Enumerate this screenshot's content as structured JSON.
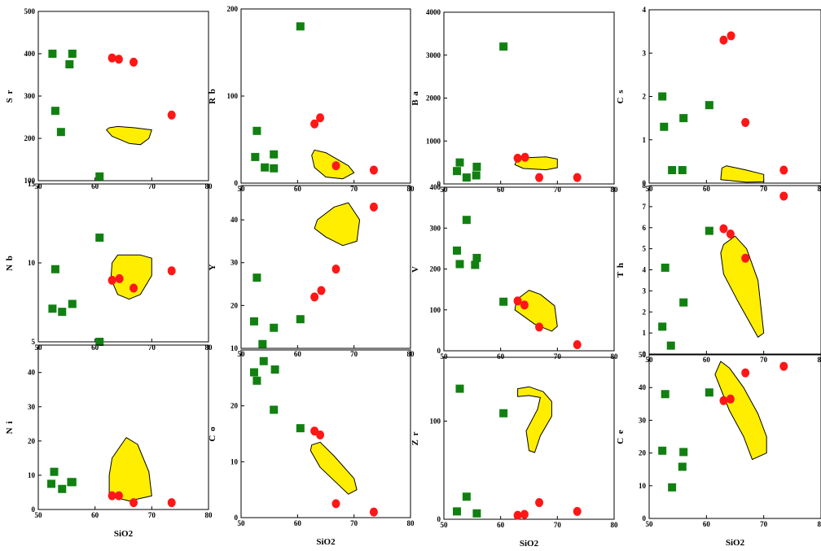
{
  "colors": {
    "square": "#118011",
    "circle": "#ff1616",
    "field": "#ffee00",
    "field_stroke": "#000000"
  },
  "x_tick_labels": [
    "50",
    "60",
    "70",
    "80"
  ],
  "xlabel": "SiO2",
  "chart_data": [
    {
      "type": "scatter",
      "ylabel": "S r",
      "xlim": [
        50,
        80
      ],
      "ylim": [
        100,
        500
      ],
      "yticks": [
        "100",
        "200",
        "300",
        "400",
        "500"
      ],
      "squares": [
        [
          52.5,
          400
        ],
        [
          56,
          400
        ],
        [
          55.5,
          375
        ],
        [
          53,
          265
        ],
        [
          54,
          215
        ],
        [
          60.8,
          110
        ]
      ],
      "circles": [
        [
          63,
          390
        ],
        [
          64.2,
          387
        ],
        [
          66.8,
          380
        ],
        [
          73.5,
          255
        ]
      ],
      "field": [
        [
          62.5,
          225
        ],
        [
          64,
          228
        ],
        [
          67,
          225
        ],
        [
          70,
          220
        ],
        [
          69.5,
          200
        ],
        [
          68,
          185
        ],
        [
          66,
          188
        ],
        [
          63,
          205
        ],
        [
          62,
          220
        ]
      ]
    },
    {
      "type": "scatter",
      "ylabel": "R b",
      "xlim": [
        50,
        80
      ],
      "ylim": [
        0,
        200
      ],
      "yticks": [
        "0",
        "100",
        "200"
      ],
      "squares": [
        [
          60.5,
          180
        ],
        [
          52.8,
          60
        ],
        [
          52.5,
          30
        ],
        [
          55.8,
          33
        ],
        [
          54.2,
          18
        ],
        [
          55.8,
          17
        ]
      ],
      "circles": [
        [
          63,
          68
        ],
        [
          64,
          75
        ],
        [
          66.8,
          20
        ],
        [
          73.5,
          15
        ]
      ],
      "field": [
        [
          63,
          38
        ],
        [
          65,
          35
        ],
        [
          69,
          20
        ],
        [
          70,
          12
        ],
        [
          68,
          5
        ],
        [
          65,
          7
        ],
        [
          63,
          18
        ],
        [
          62.5,
          32
        ]
      ]
    },
    {
      "type": "scatter",
      "ylabel": "B a",
      "xlim": [
        50,
        80
      ],
      "ylim": [
        0,
        4000
      ],
      "yticks": [
        "0",
        "1000",
        "2000",
        "3000",
        "4000"
      ],
      "squares": [
        [
          60.5,
          3200
        ],
        [
          52.8,
          500
        ],
        [
          55.8,
          400
        ],
        [
          52.3,
          300
        ],
        [
          55.7,
          200
        ],
        [
          54,
          150
        ]
      ],
      "circles": [
        [
          63,
          600
        ],
        [
          64.3,
          620
        ],
        [
          66.8,
          150
        ],
        [
          73.5,
          150
        ]
      ],
      "field": [
        [
          63,
          600
        ],
        [
          68,
          630
        ],
        [
          70,
          580
        ],
        [
          70,
          380
        ],
        [
          68,
          330
        ],
        [
          64,
          360
        ],
        [
          62.5,
          450
        ]
      ]
    },
    {
      "type": "scatter",
      "ylabel": "C s",
      "xlim": [
        50,
        80
      ],
      "ylim": [
        0,
        4
      ],
      "yticks": [
        "0",
        "1",
        "2",
        "3",
        "4"
      ],
      "squares": [
        [
          52.3,
          2
        ],
        [
          52.6,
          1.3
        ],
        [
          56,
          1.5
        ],
        [
          60.5,
          1.8
        ],
        [
          54,
          0.3
        ],
        [
          55.8,
          0.3
        ]
      ],
      "circles": [
        [
          63,
          3.3
        ],
        [
          64.3,
          3.4
        ],
        [
          66.8,
          1.4
        ],
        [
          73.5,
          0.3
        ]
      ],
      "field": [
        [
          62.7,
          0.35
        ],
        [
          63.5,
          0.4
        ],
        [
          67,
          0.3
        ],
        [
          70,
          0.2
        ],
        [
          70,
          0.03
        ],
        [
          67,
          0.02
        ],
        [
          62.5,
          0.08
        ]
      ]
    },
    {
      "type": "scatter",
      "ylabel": "N b",
      "xlim": [
        50,
        80
      ],
      "ylim": [
        5,
        15
      ],
      "yticks": [
        "5",
        "10",
        "15"
      ],
      "squares": [
        [
          60.8,
          11.6
        ],
        [
          53,
          9.6
        ],
        [
          52.5,
          7.1
        ],
        [
          54.2,
          6.9
        ],
        [
          56,
          7.4
        ],
        [
          60.8,
          5
        ]
      ],
      "circles": [
        [
          63,
          8.9
        ],
        [
          64.3,
          9
        ],
        [
          66.8,
          8.4
        ],
        [
          73.5,
          9.5
        ]
      ],
      "field": [
        [
          63,
          10
        ],
        [
          64,
          10.5
        ],
        [
          68,
          10.5
        ],
        [
          70,
          10.3
        ],
        [
          70,
          9.2
        ],
        [
          68,
          8
        ],
        [
          66,
          7.7
        ],
        [
          64,
          8
        ],
        [
          62.8,
          9
        ]
      ]
    },
    {
      "type": "scatter",
      "ylabel": "Y",
      "xlim": [
        50,
        80
      ],
      "ylim": [
        10,
        48
      ],
      "yticks": [
        "10",
        "20",
        "30",
        "40"
      ],
      "squares": [
        [
          52.8,
          26.5
        ],
        [
          52.3,
          16.3
        ],
        [
          60.5,
          16.8
        ],
        [
          55.8,
          14.8
        ],
        [
          53.8,
          11
        ]
      ],
      "circles": [
        [
          63,
          22
        ],
        [
          64.2,
          23.5
        ],
        [
          66.8,
          28.5
        ],
        [
          73.5,
          43
        ]
      ],
      "field": [
        [
          63.5,
          40
        ],
        [
          66.5,
          43
        ],
        [
          69,
          44
        ],
        [
          71,
          40
        ],
        [
          70.5,
          35
        ],
        [
          68,
          34
        ],
        [
          65,
          36
        ],
        [
          63,
          38
        ]
      ]
    },
    {
      "type": "scatter",
      "ylabel": "V",
      "xlim": [
        50,
        80
      ],
      "ylim": [
        0,
        400
      ],
      "yticks": [
        "0",
        "100",
        "200",
        "300",
        "400"
      ],
      "squares": [
        [
          54,
          320
        ],
        [
          52.3,
          245
        ],
        [
          55.8,
          227
        ],
        [
          52.8,
          212
        ],
        [
          55.5,
          210
        ],
        [
          60.5,
          120
        ]
      ],
      "circles": [
        [
          63,
          122
        ],
        [
          64.2,
          112
        ],
        [
          66.8,
          58
        ],
        [
          73.5,
          15
        ]
      ],
      "field": [
        [
          62.8,
          125
        ],
        [
          65,
          148
        ],
        [
          67,
          138
        ],
        [
          69.5,
          110
        ],
        [
          70,
          60
        ],
        [
          69,
          48
        ],
        [
          66,
          65
        ],
        [
          62.5,
          100
        ]
      ]
    },
    {
      "type": "scatter",
      "ylabel": "T h",
      "xlim": [
        50,
        80
      ],
      "ylim": [
        0,
        8
      ],
      "yticks": [
        "0",
        "1",
        "2",
        "3",
        "4",
        "5",
        "6",
        "7",
        "8"
      ],
      "squares": [
        [
          60.5,
          5.85
        ],
        [
          52.8,
          4.1
        ],
        [
          56,
          2.45
        ],
        [
          52.3,
          1.3
        ],
        [
          53.8,
          0.4
        ]
      ],
      "circles": [
        [
          63,
          5.95
        ],
        [
          64.2,
          5.7
        ],
        [
          66.8,
          4.55
        ],
        [
          73.5,
          7.5
        ]
      ],
      "field": [
        [
          63,
          5.2
        ],
        [
          65,
          5.6
        ],
        [
          67,
          5
        ],
        [
          69,
          3.5
        ],
        [
          70,
          1
        ],
        [
          69,
          0.8
        ],
        [
          65.5,
          2.5
        ],
        [
          63,
          3.8
        ],
        [
          62.5,
          4.8
        ]
      ]
    },
    {
      "type": "scatter",
      "ylabel": "N i",
      "xlim": [
        50,
        80
      ],
      "ylim": [
        0,
        48
      ],
      "yticks": [
        "0",
        "10",
        "20",
        "30",
        "40"
      ],
      "squares": [
        [
          52.8,
          11
        ],
        [
          52.3,
          7.5
        ],
        [
          55.8,
          8
        ],
        [
          56,
          8
        ],
        [
          54.2,
          6
        ]
      ],
      "circles": [
        [
          63,
          4
        ],
        [
          64.2,
          4
        ],
        [
          66.8,
          2
        ],
        [
          73.5,
          2
        ]
      ],
      "field": [
        [
          63,
          15
        ],
        [
          65.5,
          21
        ],
        [
          67.5,
          19
        ],
        [
          69.5,
          11
        ],
        [
          70,
          4
        ],
        [
          66,
          2.5
        ],
        [
          62.5,
          4
        ],
        [
          62.5,
          10
        ]
      ]
    },
    {
      "type": "scatter",
      "ylabel": "C o",
      "xlim": [
        50,
        80
      ],
      "ylim": [
        0,
        30
      ],
      "yticks": [
        "0",
        "10",
        "20"
      ],
      "squares": [
        [
          54,
          28
        ],
        [
          52.3,
          26
        ],
        [
          56,
          26.5
        ],
        [
          52.8,
          24.5
        ],
        [
          55.8,
          19.3
        ],
        [
          60.5,
          16
        ]
      ],
      "circles": [
        [
          63,
          15.5
        ],
        [
          64,
          14.8
        ],
        [
          66.8,
          2.5
        ],
        [
          73.5,
          1
        ]
      ],
      "field": [
        [
          62.5,
          13
        ],
        [
          64,
          13.5
        ],
        [
          66.5,
          11
        ],
        [
          70,
          7
        ],
        [
          70.5,
          5
        ],
        [
          69,
          4.2
        ],
        [
          64,
          9
        ],
        [
          62.3,
          12
        ]
      ]
    },
    {
      "type": "scatter",
      "ylabel": "Z r",
      "xlim": [
        50,
        80
      ],
      "ylim": [
        0,
        165
      ],
      "yticks": [
        "0",
        "100"
      ],
      "squares": [
        [
          52.8,
          133
        ],
        [
          60.5,
          108
        ],
        [
          54,
          23
        ],
        [
          52.3,
          8
        ],
        [
          55.8,
          6
        ]
      ],
      "circles": [
        [
          63,
          4
        ],
        [
          64.2,
          5
        ],
        [
          66.8,
          17
        ],
        [
          73.5,
          8
        ]
      ],
      "field": [
        [
          63,
          133
        ],
        [
          65,
          135
        ],
        [
          67.5,
          130
        ],
        [
          69,
          120
        ],
        [
          69,
          105
        ],
        [
          67,
          85
        ],
        [
          66,
          68
        ],
        [
          65,
          70
        ],
        [
          64.5,
          90
        ],
        [
          66.5,
          112
        ],
        [
          67,
          124
        ],
        [
          65,
          126
        ],
        [
          63,
          125
        ]
      ]
    },
    {
      "type": "scatter",
      "ylabel": "C e",
      "xlim": [
        50,
        80
      ],
      "ylim": [
        0,
        50
      ],
      "yticks": [
        "0",
        "10",
        "20",
        "30",
        "40",
        "50"
      ],
      "squares": [
        [
          60.5,
          38.5
        ],
        [
          52.8,
          38
        ],
        [
          52.3,
          20.7
        ],
        [
          56,
          20.3
        ],
        [
          55.8,
          15.8
        ],
        [
          54,
          9.5
        ]
      ],
      "circles": [
        [
          63,
          36
        ],
        [
          64.2,
          36.5
        ],
        [
          66.8,
          44.5
        ],
        [
          73.5,
          46.5
        ]
      ],
      "field": [
        [
          62.5,
          48
        ],
        [
          64,
          46
        ],
        [
          66.5,
          40
        ],
        [
          69,
          32
        ],
        [
          70.5,
          25
        ],
        [
          70.5,
          20
        ],
        [
          68,
          18
        ],
        [
          66.5,
          25
        ],
        [
          64,
          33
        ],
        [
          61.5,
          44
        ]
      ]
    }
  ]
}
